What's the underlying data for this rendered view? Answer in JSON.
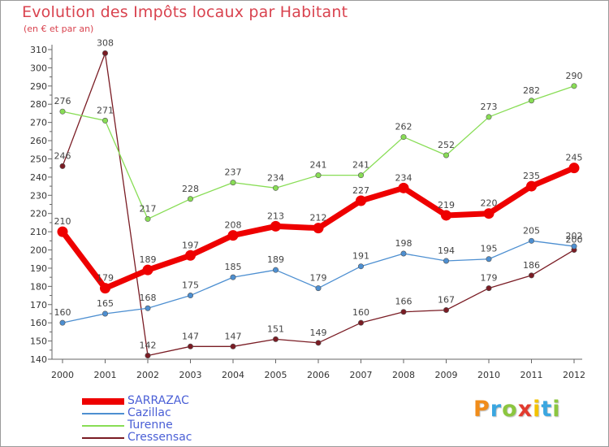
{
  "header": {
    "title": "Evolution des Impôts locaux par Habitant",
    "subtitle": "(en € et par an)"
  },
  "logo": {
    "text": "Proxiti",
    "letter_colors": [
      "#f08c1a",
      "#3aa6e0",
      "#8cc63f",
      "#e23b2f",
      "#f2c200",
      "#3aa6e0",
      "#8cc63f"
    ]
  },
  "chart_data": {
    "type": "line",
    "title": "Evolution des Impôts locaux par Habitant",
    "subtitle": "(en € et par an)",
    "xlabel": "",
    "ylabel": "",
    "x": [
      "2000",
      "2001",
      "2002",
      "2003",
      "2004",
      "2005",
      "2006",
      "2007",
      "2008",
      "2009",
      "2010",
      "2011",
      "2012"
    ],
    "ylim": [
      140,
      310
    ],
    "yticks": [
      140,
      150,
      160,
      170,
      180,
      190,
      200,
      210,
      220,
      230,
      240,
      250,
      260,
      270,
      280,
      290,
      300,
      310
    ],
    "grid": false,
    "legend_position": "bottom-left",
    "series": [
      {
        "name": "SARRAZAC",
        "color": "#ee0000",
        "values": [
          210,
          179,
          189,
          197,
          208,
          213,
          212,
          227,
          234,
          219,
          220,
          235,
          245
        ]
      },
      {
        "name": "Cazillac",
        "color": "#4d8fd1",
        "values": [
          160,
          165,
          168,
          175,
          185,
          189,
          179,
          191,
          198,
          194,
          195,
          205,
          202
        ]
      },
      {
        "name": "Turenne",
        "color": "#88dd55",
        "values": [
          276,
          271,
          217,
          228,
          237,
          234,
          241,
          241,
          262,
          252,
          273,
          282,
          290
        ]
      },
      {
        "name": "Cressensac",
        "color": "#7a1c24",
        "values": [
          246,
          308,
          142,
          147,
          147,
          151,
          149,
          160,
          166,
          167,
          179,
          186,
          200
        ]
      }
    ]
  }
}
